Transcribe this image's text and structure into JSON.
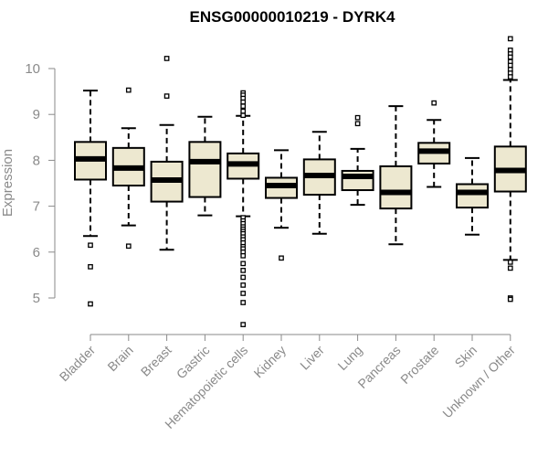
{
  "chart_data": {
    "type": "boxplot",
    "title": "ENSG00000010219 - DYRK4",
    "ylabel": "Expression",
    "xlabel": "",
    "ylim": [
      4.3,
      10.7
    ],
    "yticks": [
      5,
      6,
      7,
      8,
      9,
      10
    ],
    "box_fill": "#ede8d0",
    "categories": [
      "Bladder",
      "Brain",
      "Breast",
      "Gastric",
      "Hematopoietic cells",
      "Kidney",
      "Liver",
      "Lung",
      "Pancreas",
      "Prostate",
      "Skin",
      "Unknown / Other"
    ],
    "boxes": [
      {
        "whisker_low": 6.35,
        "q1": 7.58,
        "median": 8.03,
        "q3": 8.4,
        "whisker_high": 9.52,
        "outliers": [
          6.15,
          5.68,
          4.87
        ]
      },
      {
        "whisker_low": 6.58,
        "q1": 7.45,
        "median": 7.83,
        "q3": 8.27,
        "whisker_high": 8.7,
        "outliers": [
          9.53,
          6.13
        ]
      },
      {
        "whisker_low": 6.05,
        "q1": 7.1,
        "median": 7.57,
        "q3": 7.97,
        "whisker_high": 8.77,
        "outliers": [
          10.22,
          9.4
        ]
      },
      {
        "whisker_low": 6.8,
        "q1": 7.2,
        "median": 7.97,
        "q3": 8.4,
        "whisker_high": 8.95,
        "outliers": []
      },
      {
        "whisker_low": 6.78,
        "q1": 7.6,
        "median": 7.92,
        "q3": 8.15,
        "whisker_high": 8.97,
        "outliers": [
          9.47,
          9.42,
          9.35,
          9.27,
          9.18,
          9.07,
          8.98,
          6.75,
          6.68,
          6.62,
          6.55,
          6.5,
          6.45,
          6.4,
          6.33,
          6.27,
          6.2,
          6.12,
          6.07,
          6.0,
          5.92,
          5.75,
          5.6,
          5.45,
          5.28,
          5.1,
          4.9,
          4.42
        ]
      },
      {
        "whisker_low": 6.53,
        "q1": 7.18,
        "median": 7.45,
        "q3": 7.62,
        "whisker_high": 8.22,
        "outliers": [
          5.87
        ]
      },
      {
        "whisker_low": 6.4,
        "q1": 7.25,
        "median": 7.67,
        "q3": 8.02,
        "whisker_high": 8.62,
        "outliers": []
      },
      {
        "whisker_low": 7.03,
        "q1": 7.35,
        "median": 7.65,
        "q3": 7.77,
        "whisker_high": 8.25,
        "outliers": [
          8.93,
          8.8
        ]
      },
      {
        "whisker_low": 6.17,
        "q1": 6.95,
        "median": 7.3,
        "q3": 7.87,
        "whisker_high": 9.18,
        "outliers": []
      },
      {
        "whisker_low": 7.42,
        "q1": 7.93,
        "median": 8.2,
        "q3": 8.38,
        "whisker_high": 8.88,
        "outliers": [
          9.25
        ]
      },
      {
        "whisker_low": 6.38,
        "q1": 6.97,
        "median": 7.3,
        "q3": 7.48,
        "whisker_high": 8.05,
        "outliers": []
      },
      {
        "whisker_low": 5.83,
        "q1": 7.32,
        "median": 7.78,
        "q3": 8.3,
        "whisker_high": 9.75,
        "outliers": [
          10.65,
          10.4,
          10.32,
          10.25,
          10.15,
          10.07,
          9.98,
          9.9,
          9.82,
          5.78,
          5.65,
          5.0,
          4.97
        ]
      }
    ]
  }
}
